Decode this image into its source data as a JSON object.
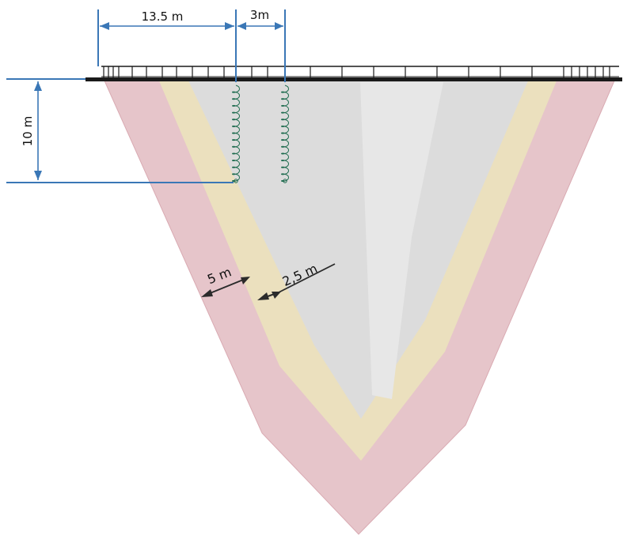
{
  "diagram": {
    "top_spacing_label": "13.5 m",
    "probe_spacing_label": "3m",
    "depth_label": "10 m",
    "outer_zone_label": "5 m",
    "inner_zone_label": "2,5 m"
  },
  "colors": {
    "outer_zone": "#e6c5ca",
    "outer_zone_edge": "#d9aab2",
    "middle_zone": "#ebe0be",
    "inner_core": "#dcdcdc",
    "inner_core_highlight": "#e7e7e7",
    "dimension_line": "#3a77b6",
    "arrow_dark": "#2b2b2b",
    "coil": "#1d6b4e",
    "deck": "#1a1a1a"
  }
}
